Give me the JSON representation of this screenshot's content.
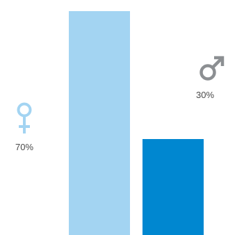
{
  "chart_data": {
    "type": "bar",
    "categories": [
      "female",
      "male"
    ],
    "values": [
      70,
      30
    ],
    "value_labels": [
      "70%",
      "30%"
    ],
    "icons": [
      "female-symbol-icon",
      "male-symbol-icon"
    ],
    "colors": [
      "#a3d4f2",
      "#0087d0"
    ],
    "icon_colors": [
      "#a3d4f2",
      "#8c8f92"
    ],
    "ylim": [
      0,
      70
    ],
    "grid": false,
    "legend": "none"
  }
}
